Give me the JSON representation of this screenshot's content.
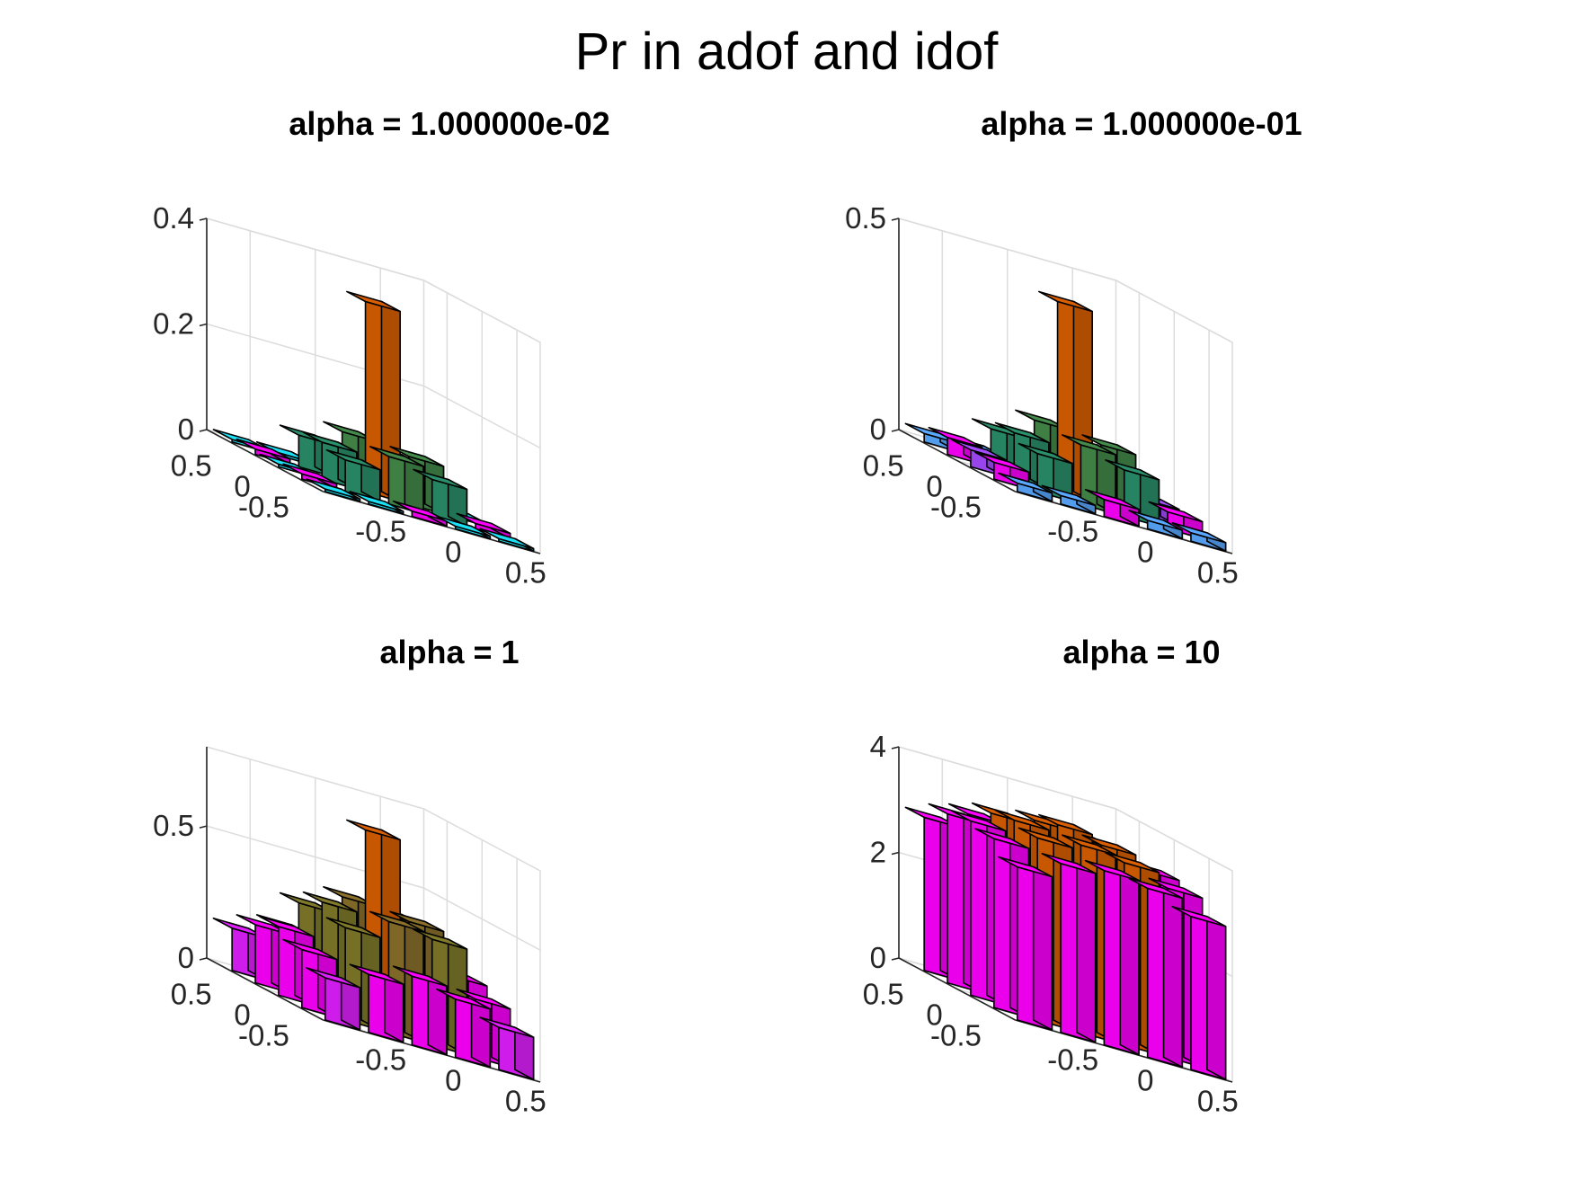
{
  "figure": {
    "title": "Pr in adof and idof"
  },
  "chart_data": [
    {
      "type": "bar3",
      "title": "alpha = 1.000000e-02",
      "xticks": [
        "-0.5",
        "0",
        "0.5"
      ],
      "yticks": [
        "0.5",
        "0",
        "-0.5"
      ],
      "zticks": [
        "0",
        "0.2",
        "0.4"
      ],
      "zlim": [
        0,
        0.4
      ],
      "bars": [
        {
          "i": 0,
          "j": 0,
          "z": 0.0,
          "color": "#1ce0f5"
        },
        {
          "i": 0,
          "j": 1,
          "z": 0.01,
          "color": "#ff00ff"
        },
        {
          "i": 0,
          "j": 2,
          "z": 0.0,
          "color": "#1ce0f5"
        },
        {
          "i": 0,
          "j": 3,
          "z": 0.01,
          "color": "#ff00ff"
        },
        {
          "i": 0,
          "j": 4,
          "z": 0.0,
          "color": "#1ce0f5"
        },
        {
          "i": 1,
          "j": 0,
          "z": 0.0,
          "color": "#1ce0f5"
        },
        {
          "i": 1,
          "j": 1,
          "z": 0.06,
          "color": "#2a8f6a"
        },
        {
          "i": 1,
          "j": 2,
          "z": 0.07,
          "color": "#2a8f6a"
        },
        {
          "i": 1,
          "j": 3,
          "z": 0.06,
          "color": "#2a8f6a"
        },
        {
          "i": 1,
          "j": 4,
          "z": 0.0,
          "color": "#1ce0f5"
        },
        {
          "i": 2,
          "j": 0,
          "z": 0.01,
          "color": "#ff00ff"
        },
        {
          "i": 2,
          "j": 1,
          "z": 0.09,
          "color": "#448a4a"
        },
        {
          "i": 2,
          "j": 2,
          "z": 0.36,
          "color": "#d95f02"
        },
        {
          "i": 2,
          "j": 3,
          "z": 0.09,
          "color": "#448a4a"
        },
        {
          "i": 2,
          "j": 4,
          "z": 0.01,
          "color": "#ff00ff"
        },
        {
          "i": 3,
          "j": 0,
          "z": 0.0,
          "color": "#1ce0f5"
        },
        {
          "i": 3,
          "j": 1,
          "z": 0.07,
          "color": "#2a8f6a"
        },
        {
          "i": 3,
          "j": 2,
          "z": 0.09,
          "color": "#448a4a"
        },
        {
          "i": 3,
          "j": 3,
          "z": 0.07,
          "color": "#2a8f6a"
        },
        {
          "i": 3,
          "j": 4,
          "z": 0.0,
          "color": "#1ce0f5"
        },
        {
          "i": 4,
          "j": 0,
          "z": 0.0,
          "color": "#1ce0f5"
        },
        {
          "i": 4,
          "j": 1,
          "z": 0.01,
          "color": "#ff00ff"
        },
        {
          "i": 4,
          "j": 2,
          "z": 0.0,
          "color": "#1ce0f5"
        },
        {
          "i": 4,
          "j": 3,
          "z": 0.01,
          "color": "#ff00ff"
        },
        {
          "i": 4,
          "j": 4,
          "z": 0.0,
          "color": "#1ce0f5"
        }
      ]
    },
    {
      "type": "bar3",
      "title": "alpha = 1.000000e-01",
      "xticks": [
        "-0.5",
        "0",
        "0.5"
      ],
      "yticks": [
        "0.5",
        "0",
        "-0.5"
      ],
      "zticks": [
        "0",
        "0.5"
      ],
      "zlim": [
        0,
        0.5
      ],
      "bars": [
        {
          "i": 0,
          "j": 0,
          "z": 0.02,
          "color": "#5aa8ff"
        },
        {
          "i": 0,
          "j": 1,
          "z": 0.04,
          "color": "#ff00ff"
        },
        {
          "i": 0,
          "j": 2,
          "z": 0.04,
          "color": "#a54cff"
        },
        {
          "i": 0,
          "j": 3,
          "z": 0.04,
          "color": "#ff00ff"
        },
        {
          "i": 0,
          "j": 4,
          "z": 0.02,
          "color": "#5aa8ff"
        },
        {
          "i": 1,
          "j": 0,
          "z": 0.02,
          "color": "#5aa8ff"
        },
        {
          "i": 1,
          "j": 1,
          "z": 0.09,
          "color": "#2a8f6a"
        },
        {
          "i": 1,
          "j": 2,
          "z": 0.11,
          "color": "#2a8f6a"
        },
        {
          "i": 1,
          "j": 3,
          "z": 0.09,
          "color": "#2a8f6a"
        },
        {
          "i": 1,
          "j": 4,
          "z": 0.02,
          "color": "#5aa8ff"
        },
        {
          "i": 2,
          "j": 0,
          "z": 0.04,
          "color": "#ff00ff"
        },
        {
          "i": 2,
          "j": 1,
          "z": 0.14,
          "color": "#448a4a"
        },
        {
          "i": 2,
          "j": 2,
          "z": 0.45,
          "color": "#d95f02"
        },
        {
          "i": 2,
          "j": 3,
          "z": 0.14,
          "color": "#448a4a"
        },
        {
          "i": 2,
          "j": 4,
          "z": 0.04,
          "color": "#ff00ff"
        },
        {
          "i": 3,
          "j": 0,
          "z": 0.02,
          "color": "#5aa8ff"
        },
        {
          "i": 3,
          "j": 1,
          "z": 0.11,
          "color": "#2a8f6a"
        },
        {
          "i": 3,
          "j": 2,
          "z": 0.14,
          "color": "#448a4a"
        },
        {
          "i": 3,
          "j": 3,
          "z": 0.11,
          "color": "#2a8f6a"
        },
        {
          "i": 3,
          "j": 4,
          "z": 0.02,
          "color": "#5aa8ff"
        },
        {
          "i": 4,
          "j": 0,
          "z": 0.02,
          "color": "#5aa8ff"
        },
        {
          "i": 4,
          "j": 1,
          "z": 0.04,
          "color": "#ff00ff"
        },
        {
          "i": 4,
          "j": 2,
          "z": 0.04,
          "color": "#a54cff"
        },
        {
          "i": 4,
          "j": 3,
          "z": 0.04,
          "color": "#ff00ff"
        },
        {
          "i": 4,
          "j": 4,
          "z": 0.02,
          "color": "#5aa8ff"
        }
      ]
    },
    {
      "type": "bar3",
      "title": "alpha = 1",
      "xticks": [
        "-0.5",
        "0",
        "0.5"
      ],
      "yticks": [
        "0.5",
        "0",
        "-0.5"
      ],
      "zticks": [
        "0",
        "0.5"
      ],
      "zlim": [
        0,
        0.8
      ],
      "bars": [
        {
          "i": 0,
          "j": 0,
          "z": 0.16,
          "color": "#e020ff"
        },
        {
          "i": 0,
          "j": 1,
          "z": 0.22,
          "color": "#ff00ff"
        },
        {
          "i": 0,
          "j": 2,
          "z": 0.26,
          "color": "#ff00ff"
        },
        {
          "i": 0,
          "j": 3,
          "z": 0.22,
          "color": "#ff00ff"
        },
        {
          "i": 0,
          "j": 4,
          "z": 0.16,
          "color": "#e020ff"
        },
        {
          "i": 1,
          "j": 0,
          "z": 0.22,
          "color": "#ff00ff"
        },
        {
          "i": 1,
          "j": 1,
          "z": 0.35,
          "color": "#807a2a"
        },
        {
          "i": 1,
          "j": 2,
          "z": 0.4,
          "color": "#807a2a"
        },
        {
          "i": 1,
          "j": 3,
          "z": 0.35,
          "color": "#807a2a"
        },
        {
          "i": 1,
          "j": 4,
          "z": 0.22,
          "color": "#ff00ff"
        },
        {
          "i": 2,
          "j": 0,
          "z": 0.26,
          "color": "#ff00ff"
        },
        {
          "i": 2,
          "j": 1,
          "z": 0.42,
          "color": "#8a702a"
        },
        {
          "i": 2,
          "j": 2,
          "z": 0.72,
          "color": "#d95f02"
        },
        {
          "i": 2,
          "j": 3,
          "z": 0.42,
          "color": "#8a702a"
        },
        {
          "i": 2,
          "j": 4,
          "z": 0.26,
          "color": "#ff00ff"
        },
        {
          "i": 3,
          "j": 0,
          "z": 0.22,
          "color": "#ff00ff"
        },
        {
          "i": 3,
          "j": 1,
          "z": 0.4,
          "color": "#807a2a"
        },
        {
          "i": 3,
          "j": 2,
          "z": 0.42,
          "color": "#8a702a"
        },
        {
          "i": 3,
          "j": 3,
          "z": 0.4,
          "color": "#807a2a"
        },
        {
          "i": 3,
          "j": 4,
          "z": 0.22,
          "color": "#ff00ff"
        },
        {
          "i": 4,
          "j": 0,
          "z": 0.16,
          "color": "#e020ff"
        },
        {
          "i": 4,
          "j": 1,
          "z": 0.22,
          "color": "#ff00ff"
        },
        {
          "i": 4,
          "j": 2,
          "z": 0.26,
          "color": "#ff00ff"
        },
        {
          "i": 4,
          "j": 3,
          "z": 0.22,
          "color": "#ff00ff"
        },
        {
          "i": 4,
          "j": 4,
          "z": 0.16,
          "color": "#e020ff"
        }
      ]
    },
    {
      "type": "bar3",
      "title": "alpha = 10",
      "xticks": [
        "-0.5",
        "0",
        "0.5"
      ],
      "yticks": [
        "0.5",
        "0",
        "-0.5"
      ],
      "zticks": [
        "0",
        "2",
        "4"
      ],
      "zlim": [
        0,
        4
      ],
      "bars": [
        {
          "i": 0,
          "j": 0,
          "z": 2.9,
          "color": "#ff00ff"
        },
        {
          "i": 0,
          "j": 1,
          "z": 3.2,
          "color": "#ff00ff"
        },
        {
          "i": 0,
          "j": 2,
          "z": 3.3,
          "color": "#ff00ff"
        },
        {
          "i": 0,
          "j": 3,
          "z": 3.2,
          "color": "#ff00ff"
        },
        {
          "i": 0,
          "j": 4,
          "z": 2.9,
          "color": "#ff00ff"
        },
        {
          "i": 1,
          "j": 0,
          "z": 3.2,
          "color": "#ff00ff"
        },
        {
          "i": 1,
          "j": 1,
          "z": 3.45,
          "color": "#d95f02"
        },
        {
          "i": 1,
          "j": 2,
          "z": 3.55,
          "color": "#d95f02"
        },
        {
          "i": 1,
          "j": 3,
          "z": 3.45,
          "color": "#d95f02"
        },
        {
          "i": 1,
          "j": 4,
          "z": 3.2,
          "color": "#ff00ff"
        },
        {
          "i": 2,
          "j": 0,
          "z": 3.3,
          "color": "#ff00ff"
        },
        {
          "i": 2,
          "j": 1,
          "z": 3.55,
          "color": "#d95f02"
        },
        {
          "i": 2,
          "j": 2,
          "z": 3.7,
          "color": "#d95f02"
        },
        {
          "i": 2,
          "j": 3,
          "z": 3.55,
          "color": "#d95f02"
        },
        {
          "i": 2,
          "j": 4,
          "z": 3.3,
          "color": "#ff00ff"
        },
        {
          "i": 3,
          "j": 0,
          "z": 3.2,
          "color": "#ff00ff"
        },
        {
          "i": 3,
          "j": 1,
          "z": 3.45,
          "color": "#d95f02"
        },
        {
          "i": 3,
          "j": 2,
          "z": 3.55,
          "color": "#d95f02"
        },
        {
          "i": 3,
          "j": 3,
          "z": 3.45,
          "color": "#d95f02"
        },
        {
          "i": 3,
          "j": 4,
          "z": 3.2,
          "color": "#ff00ff"
        },
        {
          "i": 4,
          "j": 0,
          "z": 2.9,
          "color": "#ff00ff"
        },
        {
          "i": 4,
          "j": 1,
          "z": 3.2,
          "color": "#ff00ff"
        },
        {
          "i": 4,
          "j": 2,
          "z": 3.3,
          "color": "#ff00ff"
        },
        {
          "i": 4,
          "j": 3,
          "z": 3.2,
          "color": "#ff00ff"
        },
        {
          "i": 4,
          "j": 4,
          "z": 2.9,
          "color": "#ff00ff"
        }
      ]
    }
  ]
}
